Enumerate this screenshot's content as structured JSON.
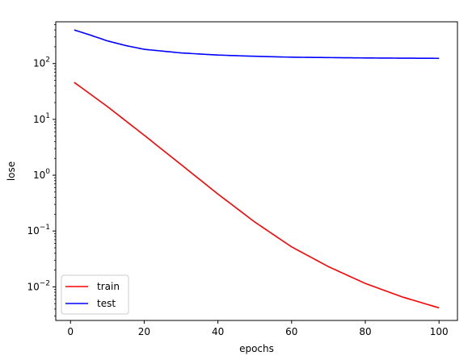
{
  "chart_data": {
    "type": "line",
    "title": "",
    "xlabel": "epochs",
    "ylabel": "lose",
    "xlim": [
      -4,
      105
    ],
    "ylim": [
      0.0025,
      560
    ],
    "yscale": "log",
    "x_ticks": [
      0,
      20,
      40,
      60,
      80,
      100
    ],
    "y_ticks": [
      {
        "value": 0.01,
        "base": "10",
        "exp": "−2"
      },
      {
        "value": 0.1,
        "base": "10",
        "exp": "−1"
      },
      {
        "value": 1,
        "base": "10",
        "exp": "0"
      },
      {
        "value": 10,
        "base": "10",
        "exp": "1"
      },
      {
        "value": 100,
        "base": "10",
        "exp": "2"
      }
    ],
    "grid": false,
    "legend": "lower left",
    "series": [
      {
        "name": "train",
        "color": "#ff0000",
        "x": [
          1,
          10,
          20,
          30,
          40,
          50,
          60,
          70,
          80,
          90,
          100
        ],
        "y": [
          46,
          17,
          5.2,
          1.55,
          0.46,
          0.145,
          0.052,
          0.023,
          0.0115,
          0.0066,
          0.0042
        ]
      },
      {
        "name": "test",
        "color": "#0000ff",
        "x": [
          1,
          5,
          10,
          15,
          20,
          30,
          40,
          50,
          60,
          70,
          80,
          90,
          100
        ],
        "y": [
          400,
          330,
          255,
          210,
          180,
          155,
          142,
          135,
          130,
          128,
          126,
          125,
          124
        ]
      }
    ]
  }
}
